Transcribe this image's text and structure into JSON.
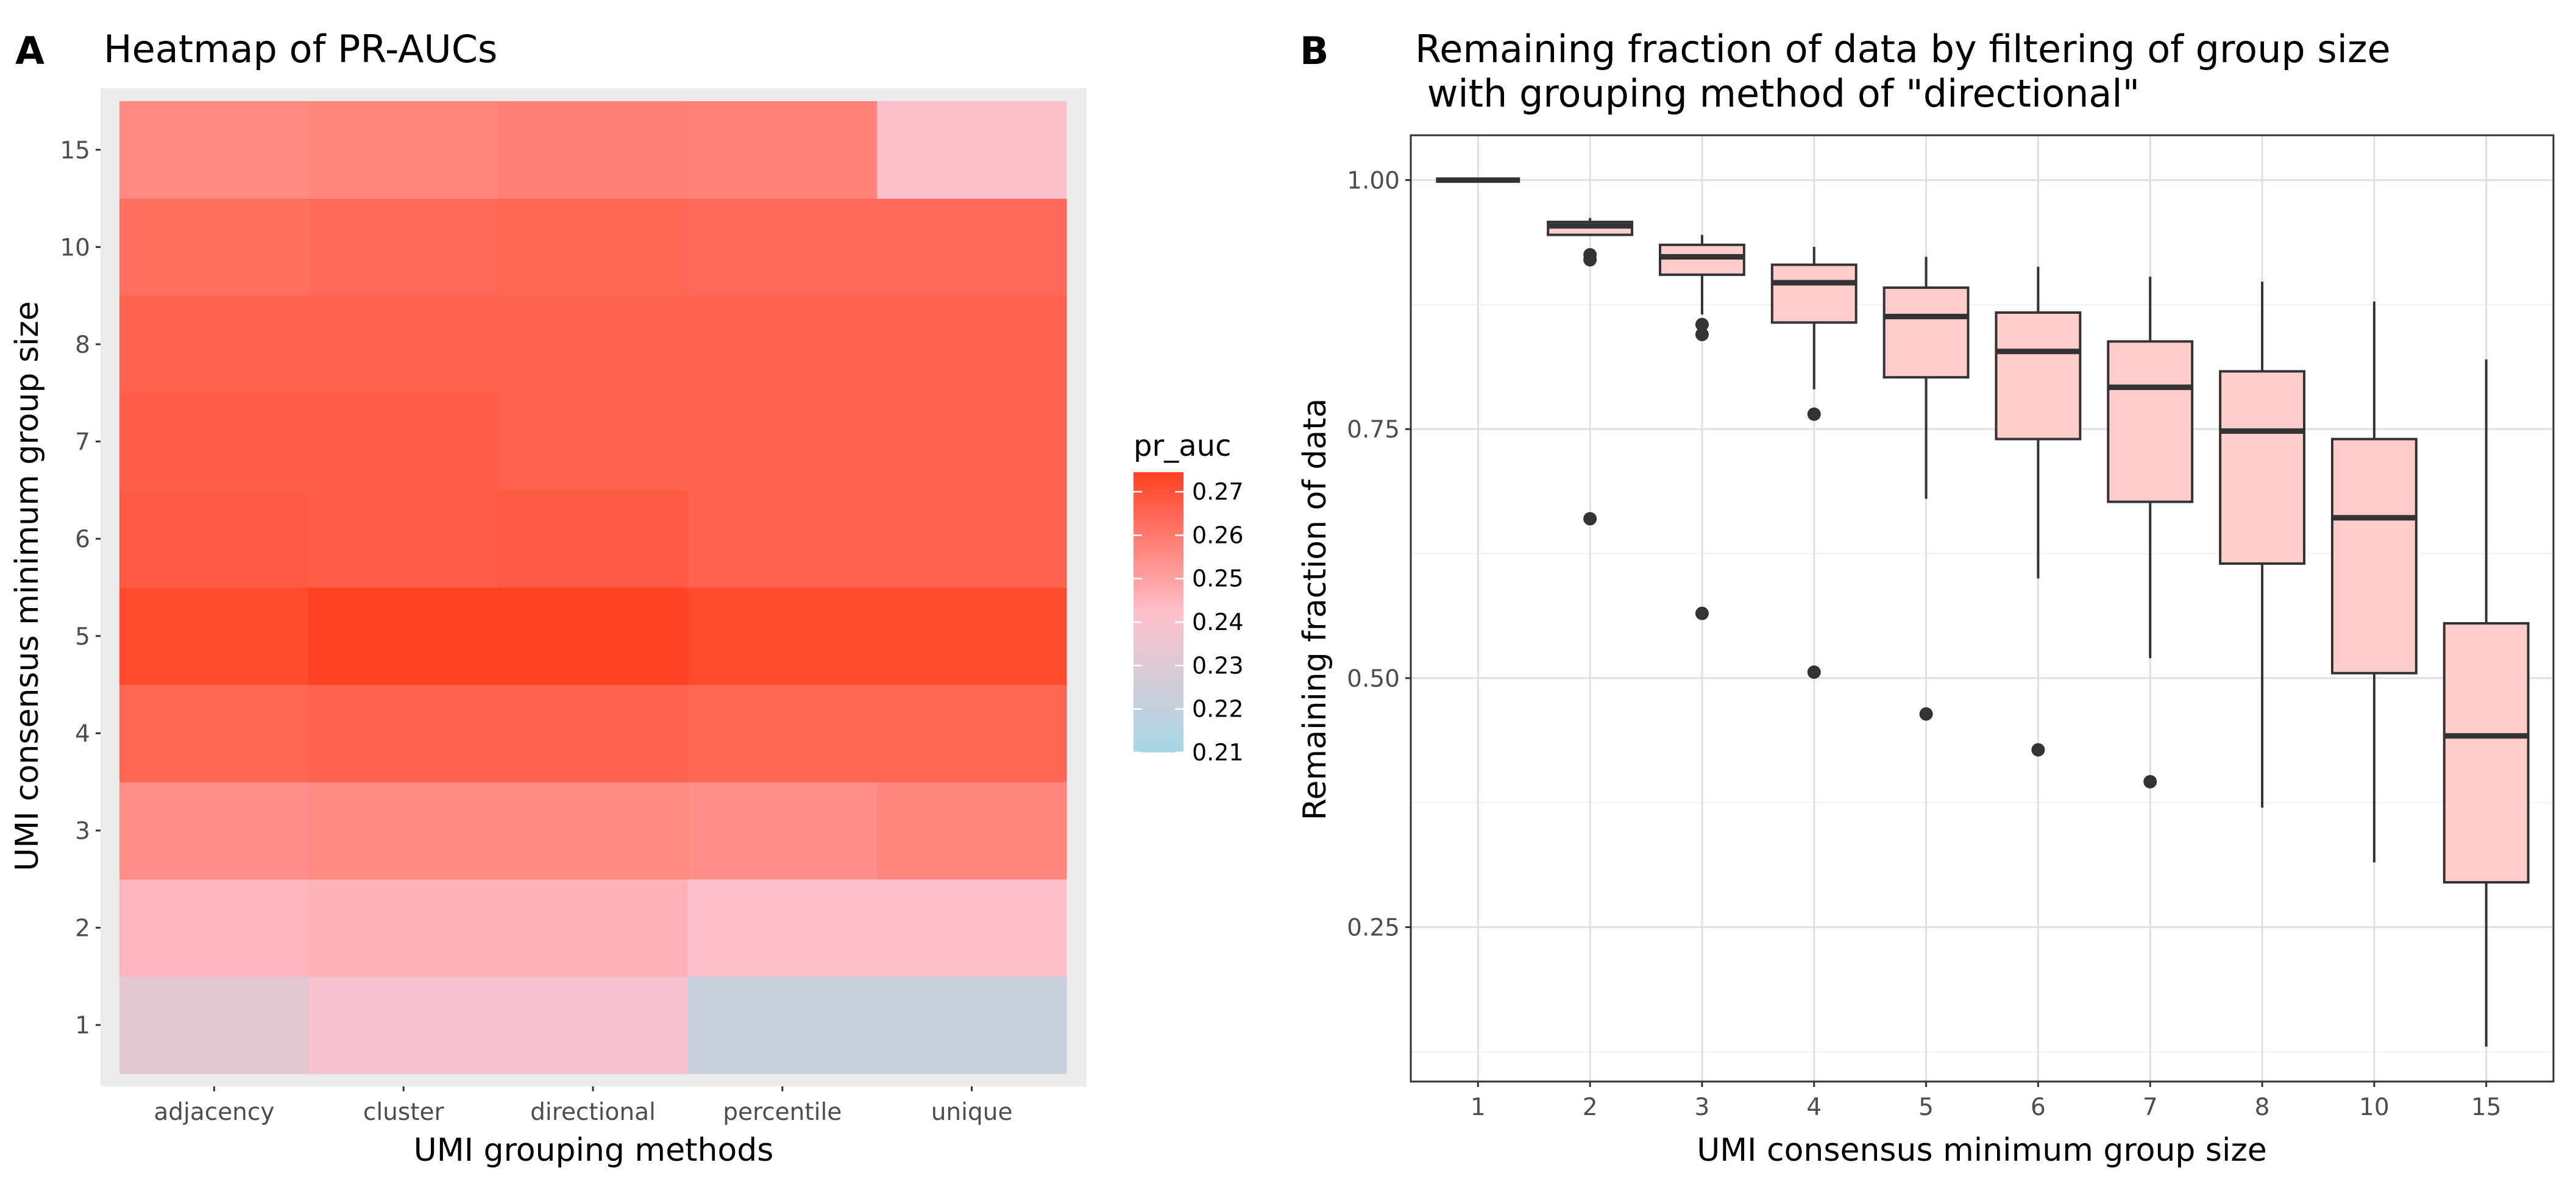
{
  "chart_data": [
    {
      "panel": "A",
      "type": "heatmap",
      "title": "Heatmap of PR-AUCs",
      "xlabel": "UMI grouping methods",
      "ylabel": "UMI consensus minimum group size",
      "x_categories": [
        "adjacency",
        "cluster",
        "directional",
        "percentile",
        "unique"
      ],
      "y_categories": [
        "1",
        "2",
        "3",
        "4",
        "5",
        "6",
        "7",
        "8",
        "10",
        "15"
      ],
      "values": [
        [
          0.232,
          0.239,
          0.239,
          0.222,
          0.222
        ],
        [
          0.245,
          0.246,
          0.246,
          0.242,
          0.242
        ],
        [
          0.255,
          0.256,
          0.256,
          0.255,
          0.257
        ],
        [
          0.265,
          0.266,
          0.266,
          0.265,
          0.265
        ],
        [
          0.272,
          0.275,
          0.274,
          0.272,
          0.272
        ],
        [
          0.268,
          0.267,
          0.268,
          0.266,
          0.266
        ],
        [
          0.267,
          0.267,
          0.266,
          0.266,
          0.266
        ],
        [
          0.266,
          0.266,
          0.266,
          0.266,
          0.266
        ],
        [
          0.263,
          0.264,
          0.265,
          0.264,
          0.264
        ],
        [
          0.256,
          0.257,
          0.259,
          0.258,
          0.241
        ]
      ],
      "legend": {
        "title": "pr_auc",
        "ticks": [
          "0.27",
          "0.26",
          "0.25",
          "0.24",
          "0.23",
          "0.22",
          "0.21"
        ],
        "tick_values": [
          0.27,
          0.26,
          0.25,
          0.24,
          0.23,
          0.22,
          0.21
        ],
        "range": [
          0.21,
          0.2745
        ],
        "low_color": "#a6d8e6",
        "mid_color": "#ffc0cb",
        "high_color": "#ff4021"
      },
      "panel_background": "#ebebeb"
    },
    {
      "panel": "B",
      "type": "boxplot",
      "title_lines": [
        "Remaining fraction of data by filtering of group size",
        " with grouping method of \"directional\""
      ],
      "xlabel": "UMI consensus minimum group size",
      "ylabel": "Remaining fraction of data",
      "categories": [
        "1",
        "2",
        "3",
        "4",
        "5",
        "6",
        "7",
        "8",
        "10",
        "15"
      ],
      "y_ticks": [
        "0.25",
        "0.50",
        "0.75",
        "1.00"
      ],
      "y_tick_values": [
        0.25,
        0.5,
        0.75,
        1.0
      ],
      "ylim": [
        0.095,
        1.045
      ],
      "box_fill": "#ffcccc",
      "boxes": [
        {
          "min": 1.0,
          "q1": 1.0,
          "median": 1.0,
          "q3": 1.0,
          "max": 1.0,
          "outliers": []
        },
        {
          "min": 0.945,
          "q1": 0.945,
          "median": 0.954,
          "q3": 0.958,
          "max": 0.962,
          "outliers": [
            0.925,
            0.92,
            0.66
          ]
        },
        {
          "min": 0.865,
          "q1": 0.905,
          "median": 0.923,
          "q3": 0.935,
          "max": 0.945,
          "outliers": [
            0.855,
            0.845,
            0.565
          ]
        },
        {
          "min": 0.79,
          "q1": 0.857,
          "median": 0.897,
          "q3": 0.915,
          "max": 0.933,
          "outliers": [
            0.765,
            0.506
          ]
        },
        {
          "min": 0.68,
          "q1": 0.802,
          "median": 0.863,
          "q3": 0.892,
          "max": 0.923,
          "outliers": [
            0.464
          ]
        },
        {
          "min": 0.6,
          "q1": 0.74,
          "median": 0.828,
          "q3": 0.867,
          "max": 0.913,
          "outliers": [
            0.428
          ]
        },
        {
          "min": 0.52,
          "q1": 0.677,
          "median": 0.792,
          "q3": 0.838,
          "max": 0.903,
          "outliers": [
            0.396
          ]
        },
        {
          "min": 0.37,
          "q1": 0.615,
          "median": 0.748,
          "q3": 0.808,
          "max": 0.898,
          "outliers": []
        },
        {
          "min": 0.315,
          "q1": 0.505,
          "median": 0.661,
          "q3": 0.74,
          "max": 0.878,
          "outliers": []
        },
        {
          "min": 0.13,
          "q1": 0.295,
          "median": 0.442,
          "q3": 0.555,
          "max": 0.82,
          "outliers": []
        }
      ]
    }
  ]
}
